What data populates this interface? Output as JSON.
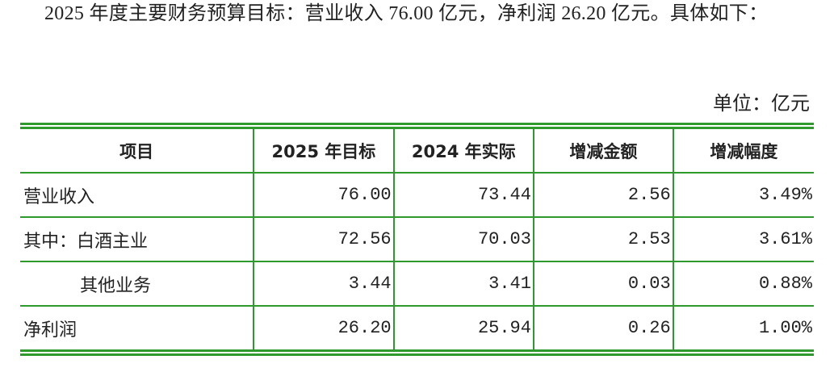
{
  "paragraph": "2025 年度主要财务预算目标：营业收入 76.00 亿元，净利润 26.20 亿元。具体如下：",
  "unit": "单位：亿元",
  "table": {
    "header": [
      "项目",
      "2025 年目标",
      "2024 年实际",
      "增减金额",
      "增减幅度"
    ],
    "rows": [
      [
        "营业收入",
        "76.00",
        "73.44",
        "2.56",
        "3.49%"
      ],
      [
        "其中：白酒主业",
        "72.56",
        "70.03",
        "2.53",
        "3.61%"
      ],
      [
        "其他业务",
        "3.44",
        "3.41",
        "0.03",
        "0.88%"
      ],
      [
        "净利润",
        "26.20",
        "25.94",
        "0.26",
        "1.00%"
      ]
    ]
  }
}
